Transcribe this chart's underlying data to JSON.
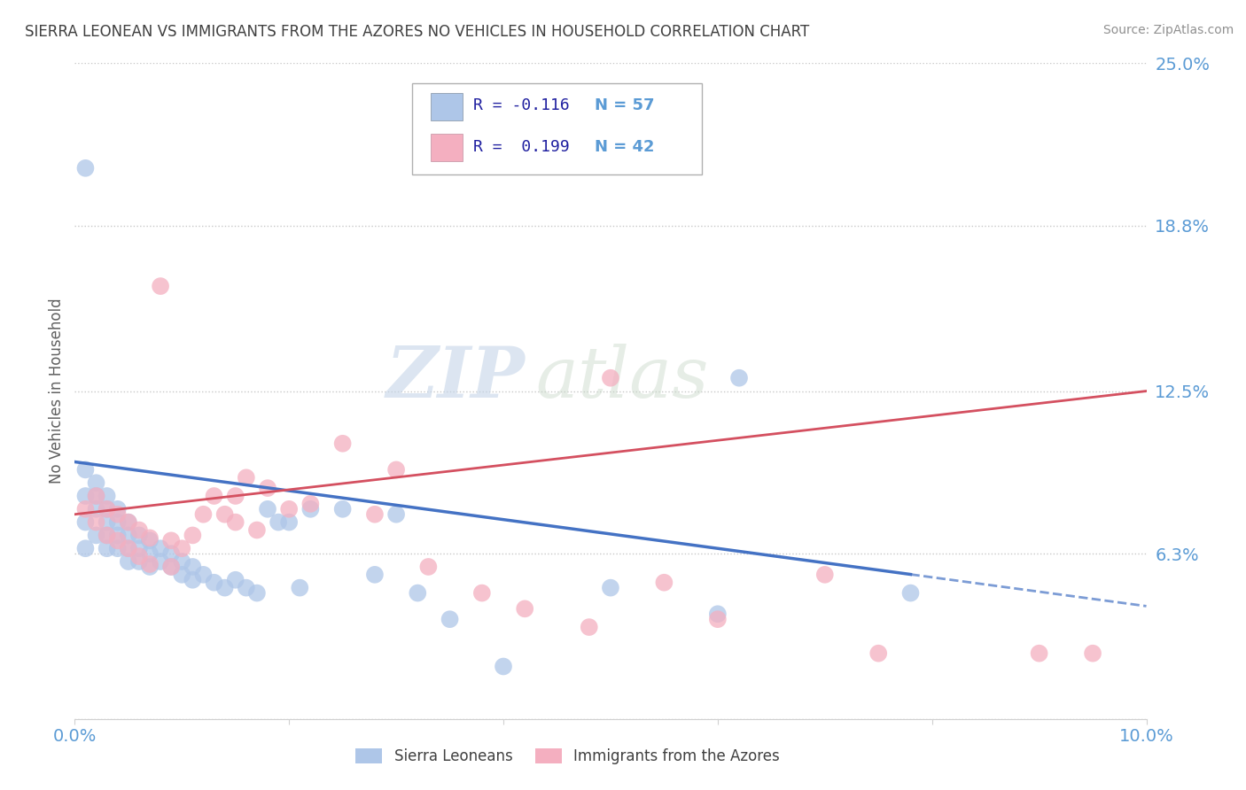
{
  "title": "SIERRA LEONEAN VS IMMIGRANTS FROM THE AZORES NO VEHICLES IN HOUSEHOLD CORRELATION CHART",
  "source": "Source: ZipAtlas.com",
  "ylabel": "No Vehicles in Household",
  "xlabel": "",
  "xlim": [
    0.0,
    0.1
  ],
  "ylim": [
    0.0,
    0.25
  ],
  "yticks": [
    0.0,
    0.063,
    0.125,
    0.188,
    0.25
  ],
  "ytick_labels": [
    "",
    "6.3%",
    "12.5%",
    "18.8%",
    "25.0%"
  ],
  "xticks": [
    0.0,
    0.02,
    0.04,
    0.06,
    0.08,
    0.1
  ],
  "xtick_labels": [
    "0.0%",
    "",
    "",
    "",
    "",
    "10.0%"
  ],
  "watermark_zip": "ZIP",
  "watermark_atlas": "atlas",
  "blue_R": "-0.116",
  "blue_N": "57",
  "pink_R": "0.199",
  "pink_N": "42",
  "blue_color": "#aec6e8",
  "pink_color": "#f4afc0",
  "blue_line_color": "#4472c4",
  "pink_line_color": "#d45060",
  "title_color": "#404040",
  "label_color": "#5b9bd5",
  "legend_R_color": "#2020a0",
  "legend_N_color": "#5b9bd5",
  "blue_line_intercept": 0.098,
  "blue_line_slope": -0.55,
  "pink_line_intercept": 0.078,
  "pink_line_slope": 0.47,
  "blue_scatter_x": [
    0.001,
    0.001,
    0.001,
    0.001,
    0.002,
    0.002,
    0.002,
    0.002,
    0.003,
    0.003,
    0.003,
    0.003,
    0.003,
    0.004,
    0.004,
    0.004,
    0.004,
    0.005,
    0.005,
    0.005,
    0.005,
    0.006,
    0.006,
    0.006,
    0.007,
    0.007,
    0.007,
    0.008,
    0.008,
    0.009,
    0.009,
    0.01,
    0.01,
    0.011,
    0.011,
    0.012,
    0.013,
    0.014,
    0.015,
    0.016,
    0.017,
    0.018,
    0.019,
    0.02,
    0.021,
    0.022,
    0.025,
    0.028,
    0.03,
    0.032,
    0.035,
    0.04,
    0.05,
    0.06,
    0.062,
    0.078,
    0.001
  ],
  "blue_scatter_y": [
    0.095,
    0.085,
    0.075,
    0.065,
    0.09,
    0.085,
    0.08,
    0.07,
    0.085,
    0.08,
    0.075,
    0.07,
    0.065,
    0.08,
    0.075,
    0.07,
    0.065,
    0.075,
    0.07,
    0.065,
    0.06,
    0.07,
    0.065,
    0.06,
    0.068,
    0.063,
    0.058,
    0.065,
    0.06,
    0.063,
    0.058,
    0.06,
    0.055,
    0.058,
    0.053,
    0.055,
    0.052,
    0.05,
    0.053,
    0.05,
    0.048,
    0.08,
    0.075,
    0.075,
    0.05,
    0.08,
    0.08,
    0.055,
    0.078,
    0.048,
    0.038,
    0.02,
    0.05,
    0.04,
    0.13,
    0.048,
    0.21
  ],
  "pink_scatter_x": [
    0.001,
    0.002,
    0.002,
    0.003,
    0.003,
    0.004,
    0.004,
    0.005,
    0.005,
    0.006,
    0.006,
    0.007,
    0.007,
    0.008,
    0.009,
    0.009,
    0.01,
    0.011,
    0.012,
    0.013,
    0.014,
    0.015,
    0.015,
    0.016,
    0.017,
    0.018,
    0.02,
    0.022,
    0.025,
    0.028,
    0.03,
    0.033,
    0.038,
    0.042,
    0.048,
    0.05,
    0.055,
    0.06,
    0.07,
    0.075,
    0.09,
    0.095
  ],
  "pink_scatter_y": [
    0.08,
    0.085,
    0.075,
    0.08,
    0.07,
    0.078,
    0.068,
    0.075,
    0.065,
    0.072,
    0.062,
    0.069,
    0.059,
    0.165,
    0.068,
    0.058,
    0.065,
    0.07,
    0.078,
    0.085,
    0.078,
    0.085,
    0.075,
    0.092,
    0.072,
    0.088,
    0.08,
    0.082,
    0.105,
    0.078,
    0.095,
    0.058,
    0.048,
    0.042,
    0.035,
    0.13,
    0.052,
    0.038,
    0.055,
    0.025,
    0.025,
    0.025
  ]
}
